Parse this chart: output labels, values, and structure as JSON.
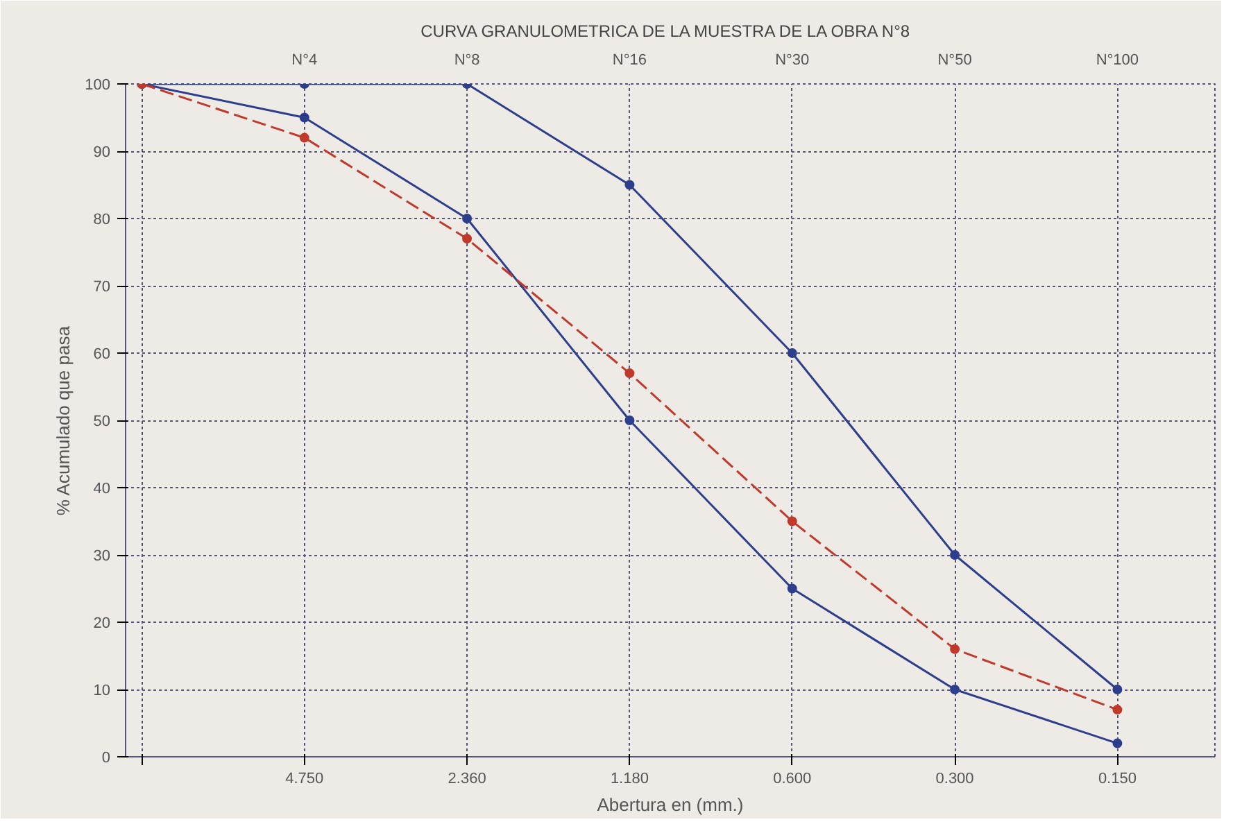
{
  "chart_data": {
    "type": "line",
    "title": "CURVA GRANULOMETRICA DE LA MUESTRA DE LA  OBRA N°8",
    "xlabel": "Abertura en (mm.)",
    "ylabel": "% Acumulado que pasa",
    "categories": [
      null,
      "4.750",
      "2.360",
      "1.180",
      "0.600",
      "0.300",
      "0.150"
    ],
    "series": [
      {
        "color": "#2c3e8c",
        "values": [
          100,
          100,
          100,
          85,
          60,
          30,
          10
        ],
        "line_style": "solid"
      },
      {
        "color": "#2c3e8c",
        "values": [
          100,
          95,
          80,
          50,
          25,
          10,
          2
        ],
        "line_style": "solid"
      },
      {
        "color": "#c0392b",
        "values": [
          100,
          92,
          77,
          57,
          35,
          16,
          7
        ],
        "line_style": "dashed"
      }
    ],
    "annotations": [
      "N°4",
      "N°8",
      "N°16",
      "N°30",
      "N°50",
      "N°100"
    ],
    "ylim": [
      0,
      100
    ],
    "yticks": [
      0,
      10,
      20,
      30,
      40,
      50,
      60,
      70,
      80,
      90,
      100
    ],
    "grid": true,
    "marker": "circle"
  }
}
